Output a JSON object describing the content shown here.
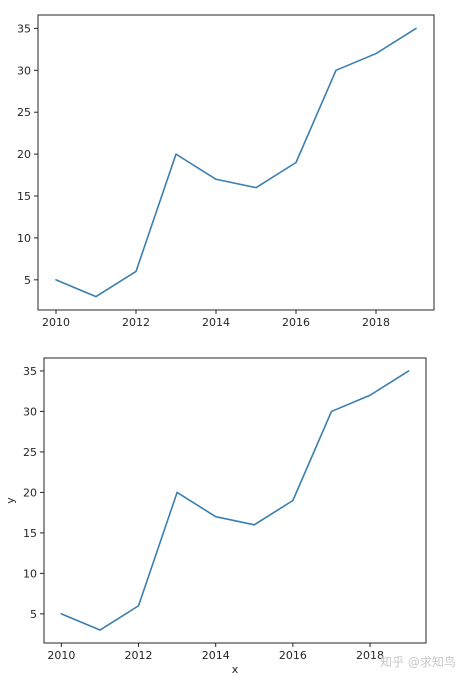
{
  "chart_data": [
    {
      "type": "line",
      "x": [
        2010,
        2011,
        2012,
        2013,
        2014,
        2015,
        2016,
        2017,
        2018,
        2019
      ],
      "series": [
        {
          "values": [
            5,
            3,
            6,
            20,
            17,
            16,
            19,
            30,
            32,
            35
          ],
          "color": "#3a7fb0"
        }
      ],
      "xticks": [
        2010,
        2012,
        2014,
        2016,
        2018
      ],
      "yticks": [
        5,
        10,
        15,
        20,
        25,
        30,
        35
      ],
      "xlim": [
        2009.55,
        2019.45
      ],
      "ylim": [
        1.4,
        36.6
      ],
      "xlabel": "",
      "ylabel": "",
      "grid": false
    },
    {
      "type": "line",
      "x": [
        2010,
        2011,
        2012,
        2013,
        2014,
        2015,
        2016,
        2017,
        2018,
        2019
      ],
      "series": [
        {
          "values": [
            5,
            3,
            6,
            20,
            17,
            16,
            19,
            30,
            32,
            35
          ],
          "color": "#3a7fb0"
        }
      ],
      "xticks": [
        2010,
        2012,
        2014,
        2016,
        2018
      ],
      "yticks": [
        5,
        10,
        15,
        20,
        25,
        30,
        35
      ],
      "xlim": [
        2009.55,
        2019.45
      ],
      "ylim": [
        1.4,
        36.6
      ],
      "xlabel": "x",
      "ylabel": "y",
      "grid": false
    }
  ],
  "watermark": "知乎 @求知鸟"
}
